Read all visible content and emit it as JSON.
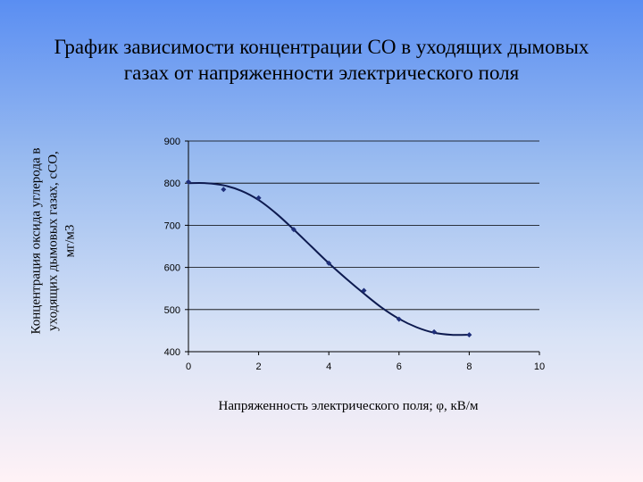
{
  "chart_data": {
    "type": "scatter",
    "title_lines": [
      "График зависимости концентрации СО в уходящих дымовых",
      "газах от напряженности электрического поля"
    ],
    "ylabel_lines": [
      "Концентрация оксида углерода в",
      "уходящих дымовых газах, сСО,",
      "мг/м3"
    ],
    "xlabel": "Напряженность электрического поля; φ, кВ/м",
    "xlim": [
      0,
      10
    ],
    "ylim": [
      400,
      900
    ],
    "xticks": [
      0,
      2,
      4,
      6,
      8,
      10
    ],
    "yticks": [
      400,
      500,
      600,
      700,
      800,
      900
    ],
    "grid": "horizontal",
    "legend": "none",
    "series": [
      {
        "points": [
          {
            "x": 0,
            "y": 803
          },
          {
            "x": 1,
            "y": 785
          },
          {
            "x": 2,
            "y": 765
          },
          {
            "x": 3,
            "y": 690
          },
          {
            "x": 4,
            "y": 610
          },
          {
            "x": 5,
            "y": 545
          },
          {
            "x": 6,
            "y": 477
          },
          {
            "x": 7,
            "y": 447
          },
          {
            "x": 8,
            "y": 440
          }
        ],
        "trendline": [
          {
            "x": 0,
            "y": 800
          },
          {
            "x": 0.5,
            "y": 800
          },
          {
            "x": 1,
            "y": 795
          },
          {
            "x": 1.5,
            "y": 782
          },
          {
            "x": 2,
            "y": 760
          },
          {
            "x": 2.5,
            "y": 728
          },
          {
            "x": 3,
            "y": 690
          },
          {
            "x": 3.5,
            "y": 650
          },
          {
            "x": 4,
            "y": 610
          },
          {
            "x": 4.5,
            "y": 573
          },
          {
            "x": 5,
            "y": 538
          },
          {
            "x": 5.5,
            "y": 505
          },
          {
            "x": 6,
            "y": 478
          },
          {
            "x": 6.5,
            "y": 458
          },
          {
            "x": 7,
            "y": 445
          },
          {
            "x": 7.5,
            "y": 440
          },
          {
            "x": 8,
            "y": 440
          }
        ]
      }
    ]
  },
  "colors": {
    "marker": "#1f2f7a",
    "trendline": "#0d1a4f",
    "grid": "#000000"
  }
}
